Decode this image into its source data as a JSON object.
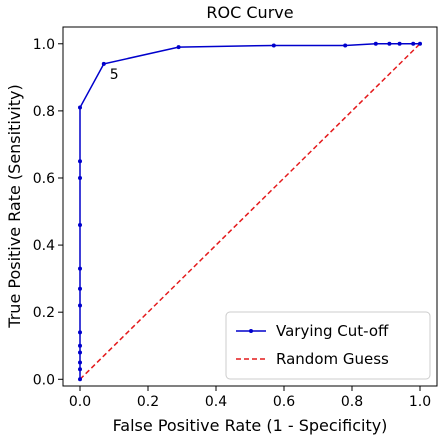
{
  "chart_data": {
    "type": "line",
    "title": "ROC Curve",
    "xlabel": "False Positive Rate (1 - Specificity)",
    "ylabel": "True Positive Rate (Sensitivity)",
    "xlim": [
      -0.05,
      1.05
    ],
    "ylim": [
      -0.02,
      1.05
    ],
    "xticks": [
      0.0,
      0.2,
      0.4,
      0.6,
      0.8,
      1.0
    ],
    "yticks": [
      0.0,
      0.2,
      0.4,
      0.6,
      0.8,
      1.0
    ],
    "xtick_labels": [
      "0.0",
      "0.2",
      "0.4",
      "0.6",
      "0.8",
      "1.0"
    ],
    "ytick_labels": [
      "0.0",
      "0.2",
      "0.4",
      "0.6",
      "0.8",
      "1.0"
    ],
    "grid": false,
    "legend_position": "bottom-right",
    "series": [
      {
        "name": "Varying Cut-off",
        "color": "#0000cc",
        "style": "solid",
        "marker": "dot",
        "x": [
          0.0,
          0.0,
          0.0,
          0.0,
          0.0,
          0.0,
          0.0,
          0.0,
          0.0,
          0.0,
          0.0,
          0.0,
          0.0,
          0.07,
          0.29,
          0.57,
          0.78,
          0.87,
          0.91,
          0.94,
          0.98,
          1.0
        ],
        "y": [
          0.0,
          0.03,
          0.05,
          0.08,
          0.1,
          0.14,
          0.22,
          0.27,
          0.33,
          0.46,
          0.6,
          0.65,
          0.81,
          0.94,
          0.99,
          0.995,
          0.995,
          1.0,
          1.0,
          1.0,
          1.0,
          1.0
        ]
      },
      {
        "name": "Random Guess",
        "color": "#e41a1c",
        "style": "dashed",
        "marker": "none",
        "x": [
          0.0,
          1.0
        ],
        "y": [
          0.0,
          1.0
        ]
      }
    ],
    "annotations": [
      {
        "text": "5",
        "x": 0.07,
        "y": 0.94
      }
    ]
  }
}
